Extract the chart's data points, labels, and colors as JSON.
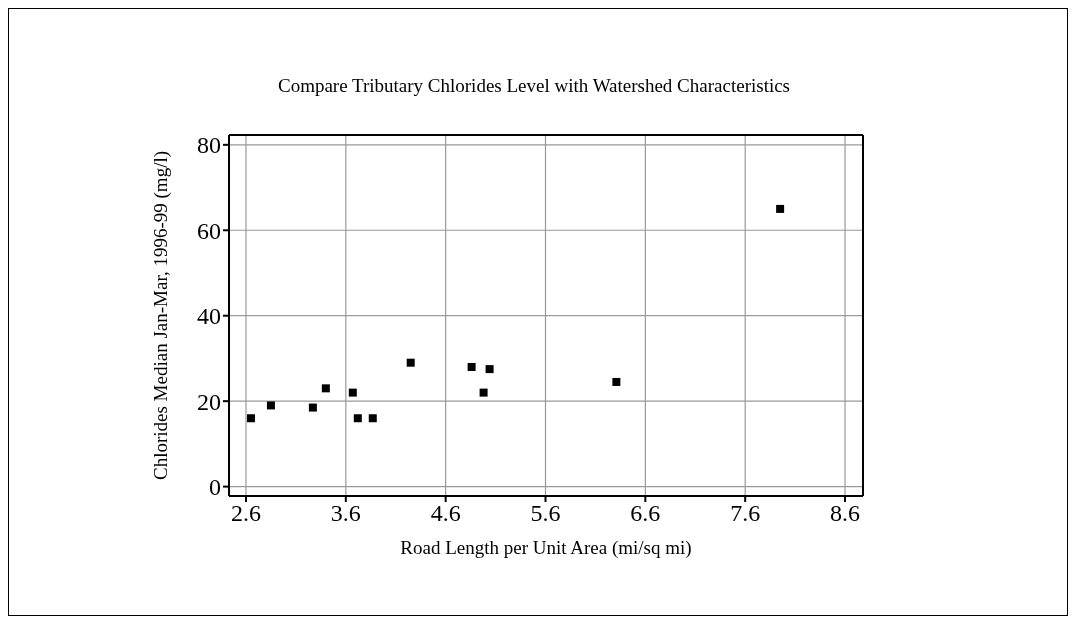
{
  "chart_data": {
    "type": "scatter",
    "title": "Compare Tributary Chlorides Level with Watershed Characteristics",
    "xlabel": "Road Length per Unit Area (mi/sq mi)",
    "ylabel": "Chlorides Median Jan-Mar, 1996-99 (mg/l)",
    "x": [
      2.65,
      2.85,
      3.27,
      3.4,
      3.67,
      3.72,
      3.87,
      4.25,
      4.86,
      4.98,
      5.04,
      6.31,
      7.95
    ],
    "values": [
      16,
      19,
      18.5,
      23,
      22,
      16,
      16,
      29,
      28,
      22,
      27.5,
      24.5,
      65
    ],
    "color": "#000000",
    "marker": "square",
    "xlim": [
      2.43,
      8.78
    ],
    "xticks": [
      2.6,
      3.6,
      4.6,
      5.6,
      6.6,
      7.6,
      8.6
    ],
    "ylim": [
      -2.2,
      82.3
    ],
    "yticks": [
      0,
      20,
      40,
      60,
      80
    ],
    "grid": true
  }
}
